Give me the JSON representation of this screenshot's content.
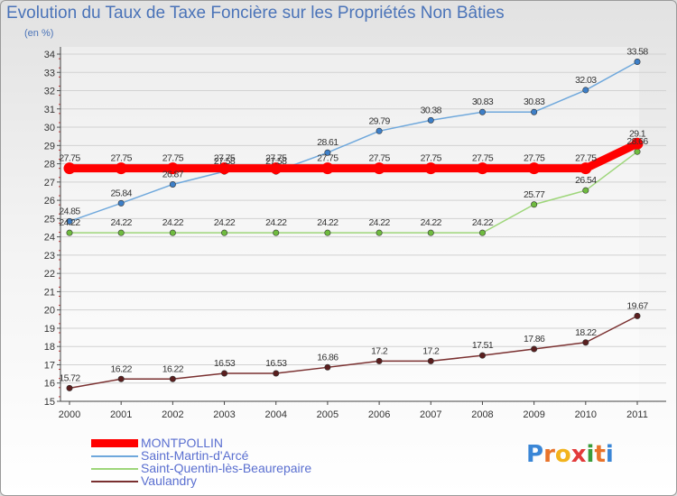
{
  "title": "Evolution du Taux de Taxe Foncière sur les Propriétés Non Bâties",
  "unit": "(en %)",
  "logo": {
    "text": "Proxiti",
    "letter_colors": [
      "#3a86d6",
      "#e8732a",
      "#f2b31c",
      "#e23a3a",
      "#3a9c3a",
      "#e8732a",
      "#3a86d6"
    ]
  },
  "chart_data": {
    "type": "line",
    "title": "Evolution du Taux de Taxe Foncière sur les Propriétés Non Bâties",
    "ylabel": "(en %)",
    "xlabel": "",
    "x": [
      "2000",
      "2001",
      "2002",
      "2003",
      "2004",
      "2005",
      "2006",
      "2007",
      "2008",
      "2009",
      "2010",
      "2011"
    ],
    "ylim": [
      15,
      34
    ],
    "yticks": [
      15,
      16,
      17,
      18,
      19,
      20,
      21,
      22,
      23,
      24,
      25,
      26,
      27,
      28,
      29,
      30,
      31,
      32,
      33,
      34
    ],
    "grid": "horizontal",
    "legend_position": "bottom-left",
    "series": [
      {
        "name": "MONTPOLLIN",
        "color": "#ff0000",
        "emphasis": true,
        "values": [
          27.75,
          27.75,
          27.75,
          27.75,
          27.75,
          27.75,
          27.75,
          27.75,
          27.75,
          27.75,
          27.75,
          29.1
        ],
        "labels": [
          "27.75",
          "27.75",
          "27.75",
          "27.75",
          "27.75",
          "27.75",
          "27.75",
          "27.75",
          "27.75",
          "27.75",
          "27.75",
          "29.1"
        ]
      },
      {
        "name": "Saint-Martin-d'Arcé",
        "color": "#6fa8dc",
        "marker_color": "#3d7fc8",
        "values": [
          24.85,
          25.84,
          26.87,
          27.58,
          27.58,
          28.61,
          29.79,
          30.38,
          30.83,
          30.83,
          32.03,
          33.58
        ],
        "labels": [
          "24.85",
          "25.84",
          "26.87",
          "27.58",
          "27.58",
          "28.61",
          "29.79",
          "30.38",
          "30.83",
          "30.83",
          "32.03",
          "33.58"
        ]
      },
      {
        "name": "Saint-Quentin-lès-Beaurepaire",
        "color": "#9ed67a",
        "marker_color": "#6fbb3f",
        "values": [
          24.22,
          24.22,
          24.22,
          24.22,
          24.22,
          24.22,
          24.22,
          24.22,
          24.22,
          25.77,
          26.54,
          28.66
        ],
        "labels": [
          "24.22",
          "24.22",
          "24.22",
          "24.22",
          "24.22",
          "24.22",
          "24.22",
          "24.22",
          "24.22",
          "25.77",
          "26.54",
          "28.66"
        ]
      },
      {
        "name": "Vaulandry",
        "color": "#7a3030",
        "marker_color": "#5a1e1e",
        "values": [
          15.72,
          16.22,
          16.22,
          16.53,
          16.53,
          16.86,
          17.2,
          17.2,
          17.51,
          17.86,
          18.22,
          19.67
        ],
        "labels": [
          "15.72",
          "16.22",
          "16.22",
          "16.53",
          "16.53",
          "16.86",
          "17.2",
          "17.2",
          "17.51",
          "17.86",
          "18.22",
          "19.67"
        ]
      }
    ]
  }
}
